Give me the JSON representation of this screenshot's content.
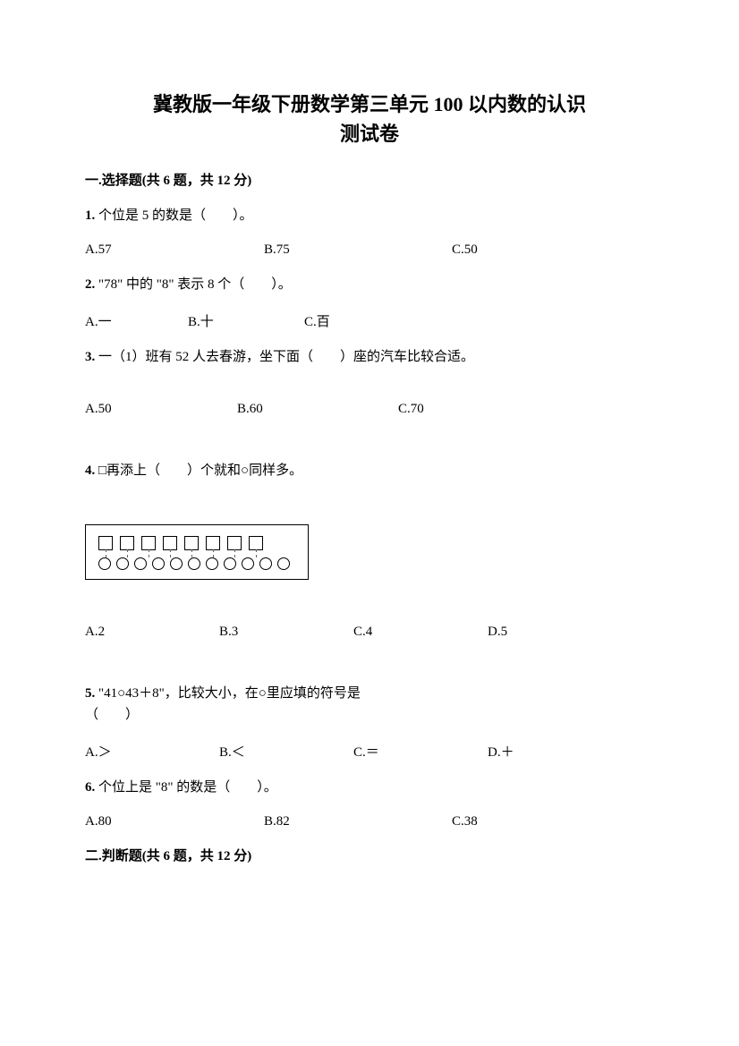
{
  "title_line1": "冀教版一年级下册数学第三单元 100 以内数的认识",
  "title_line2": "测试卷",
  "section1_header": "一.选择题(共 6 题，共 12 分)",
  "q1": {
    "num": "1.",
    "text": " 个位是 5 的数是（　　）。",
    "a": "A.57",
    "b": "B.75",
    "c": "C.50"
  },
  "q2": {
    "num": "2.",
    "text": " \"78\" 中的 \"8\" 表示 8 个（　　）。",
    "a": "A.一",
    "b": "B.十",
    "c": "C.百"
  },
  "q3": {
    "num": "3.",
    "text": " 一（1）班有 52 人去春游，坐下面（　　）座的汽车比较合适。",
    "a": "A.50",
    "b": "B.60",
    "c": "C.70"
  },
  "q4": {
    "num": "4.",
    "text": " □再添上（　　）个就和○同样多。",
    "a": "A.2",
    "b": "B.3",
    "c": "C.4",
    "d": "D.5",
    "figure": {
      "squares_count": 8,
      "circles_count": 11,
      "border_color": "#000000",
      "shape_border": "#000000",
      "connector_color": "#666666"
    }
  },
  "q5": {
    "num": "5.",
    "text": " \"41○43＋8\"，比较大小，在○里应填的符号是",
    "paren": "（　　）",
    "a": "A.＞",
    "b": "B.＜",
    "c": "C.＝",
    "d": "D.＋"
  },
  "q6": {
    "num": "6.",
    "text": " 个位上是 \"8\" 的数是（　　）。",
    "a": "A.80",
    "b": "B.82",
    "c": "C.38"
  },
  "section2_header": "二.判断题(共 6 题，共 12 分)"
}
